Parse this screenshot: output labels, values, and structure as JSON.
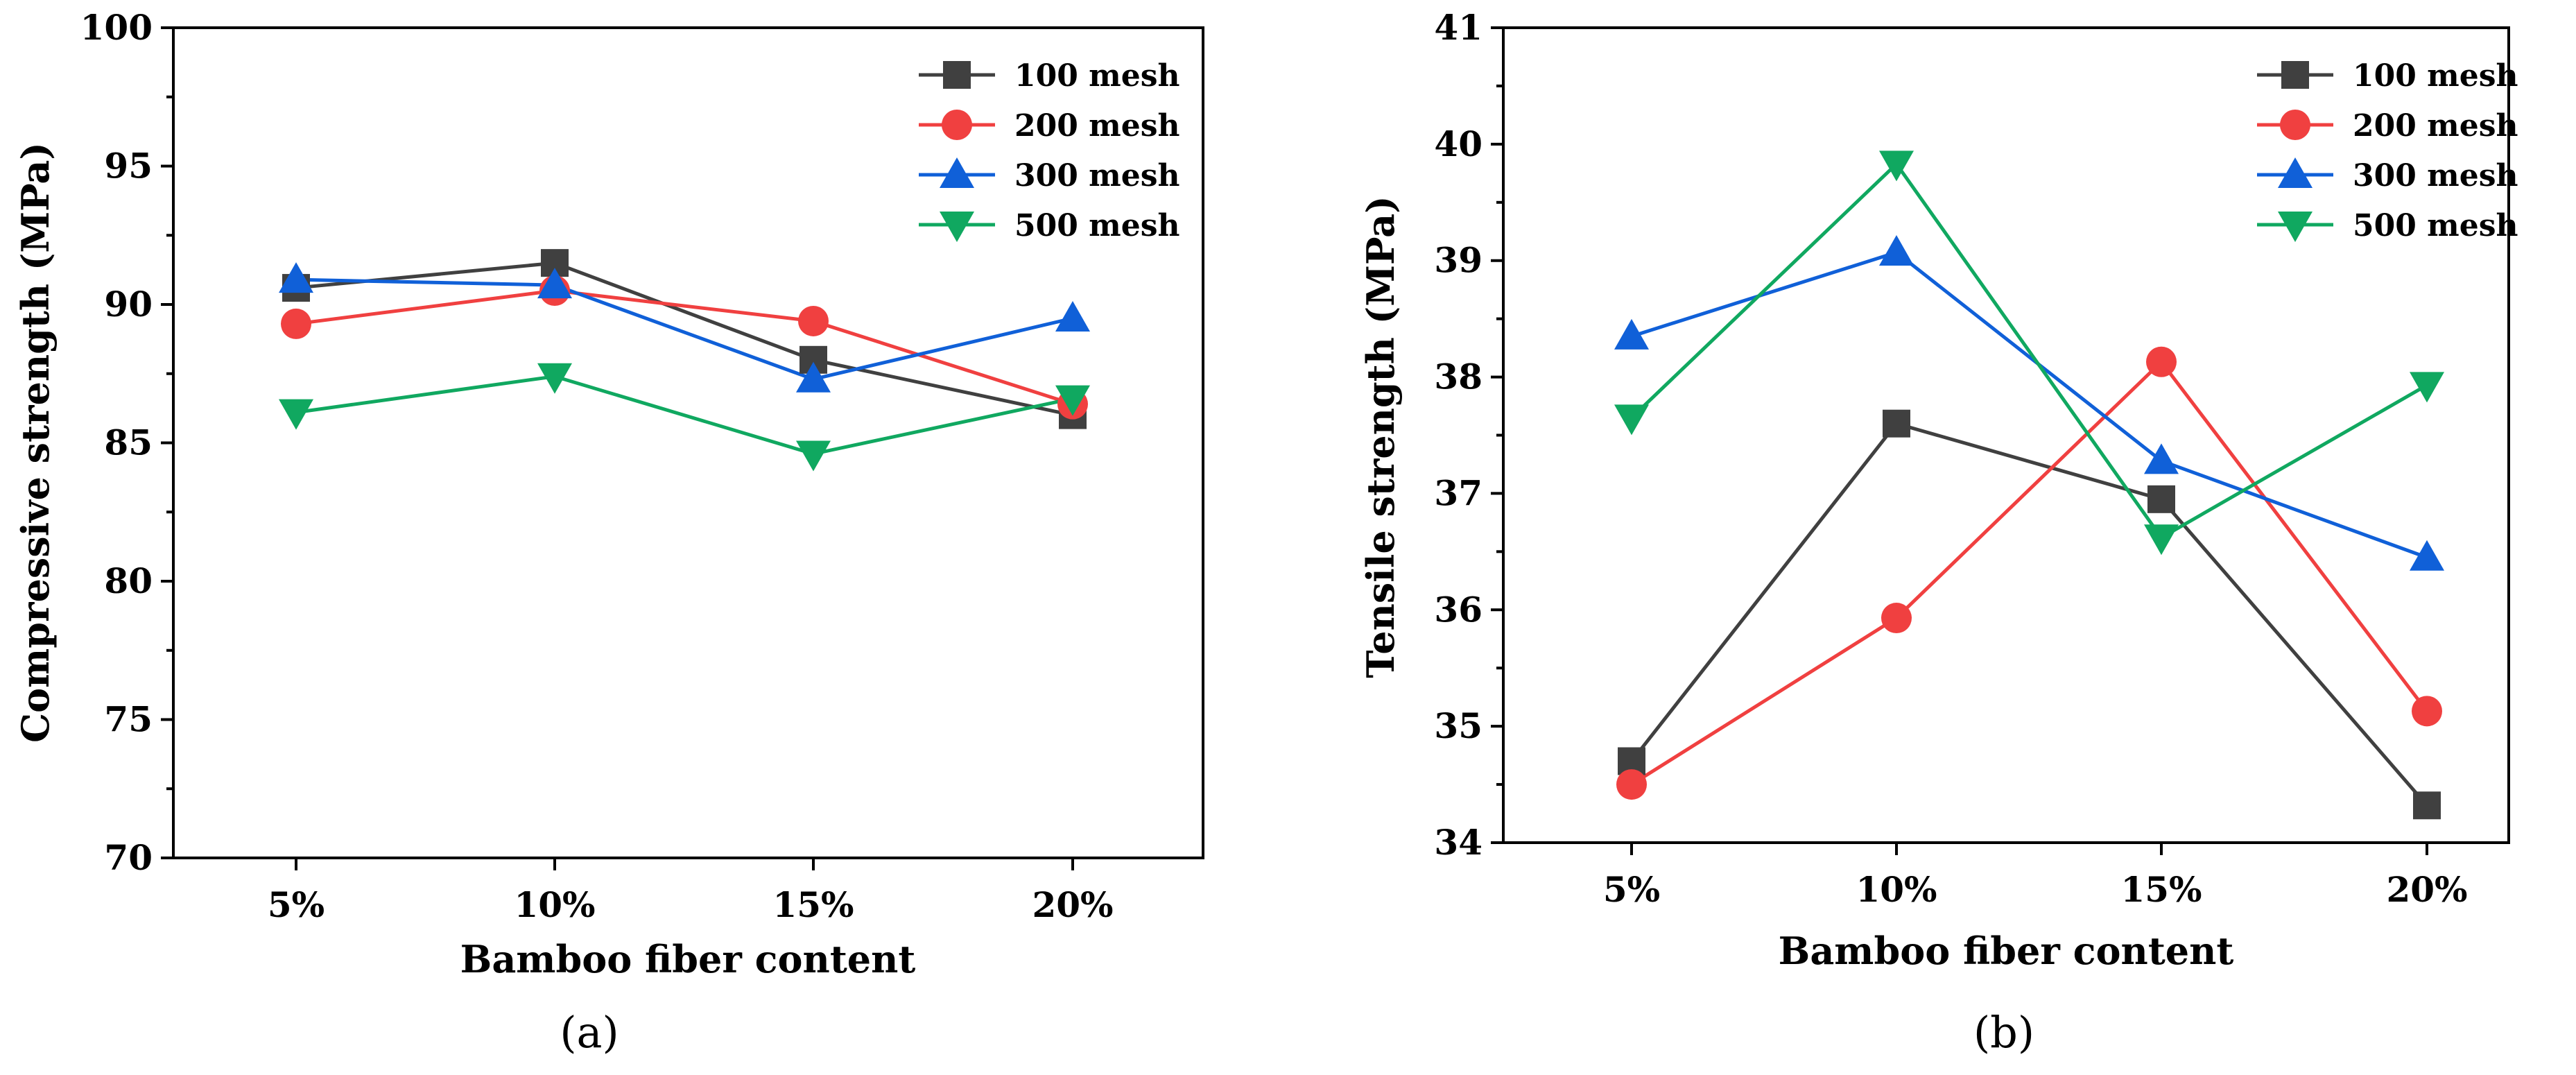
{
  "chart_data": [
    {
      "type": "line",
      "panel_label": "(a)",
      "xlabel": "Bamboo fiber content",
      "ylabel": "Compressive strength (MPa)",
      "categories": [
        "5%",
        "10%",
        "15%",
        "20%"
      ],
      "ylim": [
        70,
        100
      ],
      "yticks": [
        "70",
        "75",
        "80",
        "85",
        "90",
        "95",
        "100"
      ],
      "legend_position": "top-right",
      "series": [
        {
          "name": "100 mesh",
          "values": [
            90.6,
            91.5,
            88.0,
            86.0
          ],
          "color": "#404040",
          "marker": "square"
        },
        {
          "name": "200 mesh",
          "values": [
            89.3,
            90.5,
            89.4,
            86.4
          ],
          "color": "#f04040",
          "marker": "circle"
        },
        {
          "name": "300 mesh",
          "values": [
            90.9,
            90.7,
            87.3,
            89.5
          ],
          "color": "#1060d8",
          "marker": "triangle-up"
        },
        {
          "name": "500 mesh",
          "values": [
            86.1,
            87.4,
            84.6,
            86.6
          ],
          "color": "#10a860",
          "marker": "triangle-down"
        }
      ]
    },
    {
      "type": "line",
      "panel_label": "(b)",
      "xlabel": "Bamboo fiber content",
      "ylabel": "Tensile strength (MPa)",
      "categories": [
        "5%",
        "10%",
        "15%",
        "20%"
      ],
      "ylim": [
        34,
        41
      ],
      "yticks": [
        "34",
        "35",
        "36",
        "37",
        "38",
        "39",
        "40",
        "41"
      ],
      "legend_position": "top-right",
      "series": [
        {
          "name": "100 mesh",
          "values": [
            34.7,
            37.6,
            36.95,
            34.32
          ],
          "color": "#404040",
          "marker": "square"
        },
        {
          "name": "200 mesh",
          "values": [
            34.5,
            35.93,
            38.13,
            35.13
          ],
          "color": "#f04040",
          "marker": "circle"
        },
        {
          "name": "300 mesh",
          "values": [
            38.35,
            39.07,
            37.28,
            36.45
          ],
          "color": "#1060d8",
          "marker": "triangle-up"
        },
        {
          "name": "500 mesh",
          "values": [
            37.65,
            39.83,
            36.62,
            37.93
          ],
          "color": "#10a860",
          "marker": "triangle-down"
        }
      ]
    }
  ]
}
